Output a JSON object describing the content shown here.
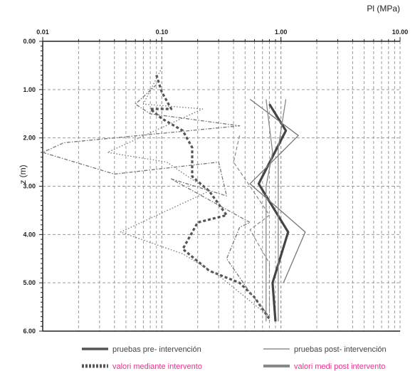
{
  "chart_data": {
    "type": "line",
    "xlabel": "Pl (MPa)",
    "ylabel": "z (m)",
    "x_scale": "log",
    "xlim": [
      0.01,
      10
    ],
    "ylim": [
      0,
      6
    ],
    "y_inverted": true,
    "grid": true,
    "legend_position": "bottom",
    "x_tick_labels": [
      "0.01",
      "0.10",
      "1.00",
      "10.00"
    ],
    "y_tick_labels": [
      "0.00",
      "1.00",
      "2.00",
      "3.00",
      "4.00",
      "5.00",
      "6.00"
    ],
    "series": [
      {
        "name": "pruebas pre- intervención",
        "color": "#444444",
        "style": "thick-solid",
        "in_legend": true,
        "points": [
          [
            0.8,
            1.3
          ],
          [
            1.1,
            1.85
          ],
          [
            0.65,
            2.95
          ],
          [
            1.15,
            3.95
          ],
          [
            0.85,
            5.0
          ],
          [
            0.9,
            5.8
          ]
        ]
      },
      {
        "name": "pruebas post- intervención",
        "color": "#777777",
        "style": "thin-solid",
        "in_legend": true,
        "points": [
          [
            0.55,
            1.2
          ],
          [
            1.4,
            1.95
          ],
          [
            0.55,
            2.95
          ],
          [
            1.6,
            3.95
          ],
          [
            1.05,
            5.0
          ]
        ]
      },
      {
        "name": "",
        "color": "#888888",
        "style": "thin-solid",
        "in_legend": false,
        "points": [
          [
            0.75,
            1.2
          ],
          [
            0.85,
            2.3
          ],
          [
            0.75,
            3.0
          ],
          [
            0.75,
            5.8
          ]
        ]
      },
      {
        "name": "",
        "color": "#888888",
        "style": "thin-solid",
        "in_legend": false,
        "points": [
          [
            1.1,
            1.2
          ],
          [
            0.95,
            2.2
          ],
          [
            0.95,
            3.0
          ],
          [
            0.95,
            5.8
          ]
        ]
      },
      {
        "name": "valori mediante intervento",
        "color": "#555555",
        "style": "thick-dash",
        "in_legend": true,
        "points": [
          [
            0.09,
            0.7
          ],
          [
            0.1,
            1.05
          ],
          [
            0.12,
            1.4
          ],
          [
            0.08,
            1.4
          ],
          [
            0.1,
            1.6
          ],
          [
            0.15,
            1.85
          ],
          [
            0.18,
            2.2
          ],
          [
            0.18,
            2.8
          ],
          [
            0.25,
            3.1
          ],
          [
            0.35,
            3.6
          ],
          [
            0.2,
            3.75
          ],
          [
            0.15,
            4.3
          ],
          [
            0.25,
            4.75
          ],
          [
            0.45,
            5.0
          ],
          [
            0.6,
            5.3
          ],
          [
            0.8,
            5.75
          ]
        ]
      },
      {
        "name": "",
        "color": "#777777",
        "style": "dot",
        "in_legend": false,
        "points": [
          [
            0.1,
            0.55
          ],
          [
            0.07,
            1.3
          ],
          [
            0.22,
            1.4
          ],
          [
            0.035,
            2.3
          ],
          [
            0.11,
            2.5
          ],
          [
            0.25,
            3.1
          ],
          [
            0.045,
            3.95
          ],
          [
            0.15,
            4.4
          ],
          [
            0.3,
            4.85
          ],
          [
            0.8,
            5.7
          ]
        ]
      },
      {
        "name": "",
        "color": "#777777",
        "style": "dash-dot",
        "in_legend": false,
        "points": [
          [
            0.09,
            0.9
          ],
          [
            0.06,
            1.3
          ],
          [
            0.08,
            1.5
          ],
          [
            0.45,
            1.75
          ],
          [
            0.015,
            2.1
          ],
          [
            0.01,
            2.3
          ],
          [
            0.04,
            2.75
          ],
          [
            0.3,
            2.5
          ],
          [
            0.35,
            3.2
          ],
          [
            0.12,
            2.85
          ],
          [
            0.55,
            3.75
          ],
          [
            0.45,
            3.85
          ],
          [
            0.35,
            4.5
          ],
          [
            0.55,
            5.2
          ],
          [
            0.8,
            5.7
          ]
        ]
      },
      {
        "name": "",
        "color": "#888888",
        "style": "thin-dash",
        "in_legend": false,
        "points": [
          [
            0.45,
            1.95
          ],
          [
            0.4,
            2.5
          ],
          [
            0.55,
            3.0
          ],
          [
            0.8,
            3.6
          ],
          [
            0.55,
            3.9
          ],
          [
            0.8,
            4.6
          ],
          [
            0.8,
            5.8
          ]
        ]
      },
      {
        "name": "valori medi post intervento",
        "color": "#888888",
        "style": "thick-solid",
        "in_legend": true,
        "points": []
      }
    ]
  },
  "legend": {
    "pre_label": "pruebas pre- intervención",
    "post_label": "pruebas post- intervención",
    "mediante_label": "valori mediante intervento",
    "medi_post_label": "valori medi post intervento",
    "label_color_pink": "#e8328c",
    "label_color_gray": "#444444"
  }
}
